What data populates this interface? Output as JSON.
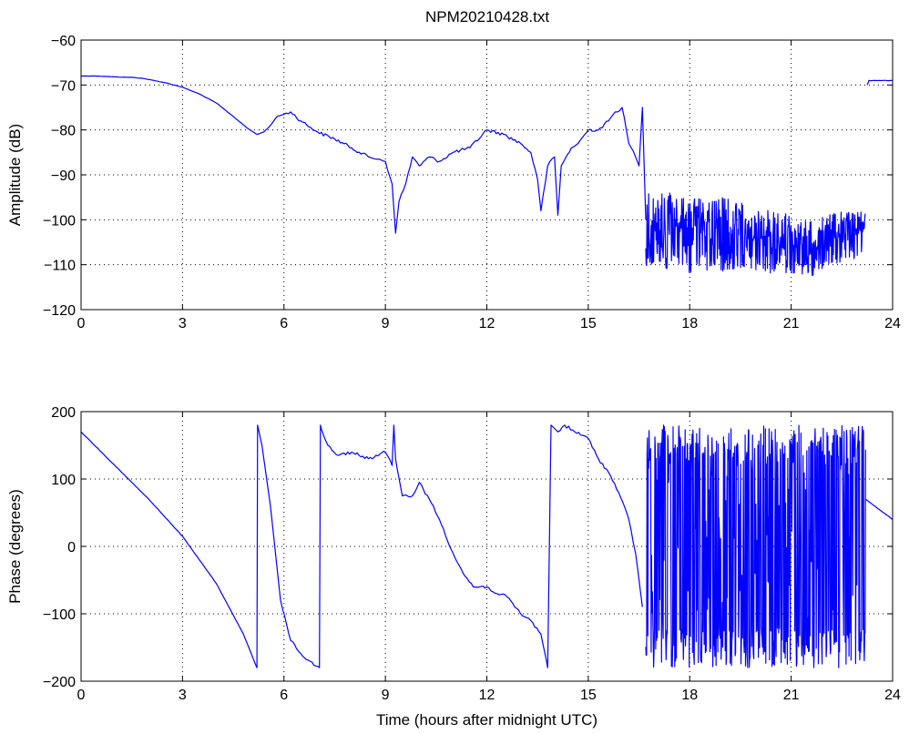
{
  "title": "NPM20210428.txt",
  "colors": {
    "line": "#0000ff",
    "axes": "#000000",
    "background": "#ffffff"
  },
  "chart_data": [
    {
      "type": "line",
      "title": "NPM20210428.txt",
      "xlabel": "",
      "ylabel": "Amplitude (dB)",
      "xlim": [
        0,
        24
      ],
      "ylim": [
        -120,
        -60
      ],
      "xticks": [
        0,
        3,
        6,
        9,
        12,
        15,
        18,
        21,
        24
      ],
      "yticks": [
        -120,
        -110,
        -100,
        -90,
        -80,
        -70,
        -60
      ],
      "grid": true,
      "series": [
        {
          "x": [
            0,
            0.5,
            1,
            1.5,
            1.8,
            2.5,
            3,
            3.5,
            4,
            4.5,
            4.9,
            5.2,
            5.4,
            5.6,
            5.8,
            6.0,
            6.2,
            6.5,
            6.8,
            7.0,
            7.5,
            8.0,
            8.5,
            8.8,
            9.0,
            9.2,
            9.3,
            9.4,
            9.6,
            9.8,
            10.0,
            10.3,
            10.6,
            11.0,
            11.5,
            12.0,
            12.5,
            13.0,
            13.3,
            13.5,
            13.6,
            13.8,
            14.0,
            14.1,
            14.2,
            14.5,
            14.7,
            15.0,
            15.3,
            15.6,
            15.8,
            16.0,
            16.2,
            16.4,
            16.5,
            16.6,
            16.7
          ],
          "values": [
            -68,
            -68,
            -68.2,
            -68.3,
            -68.5,
            -69.5,
            -70.5,
            -72,
            -74,
            -77,
            -79.5,
            -81,
            -80.5,
            -79,
            -77,
            -76.5,
            -76,
            -78,
            -79.5,
            -80.5,
            -82,
            -84,
            -86,
            -86.5,
            -87,
            -92,
            -103,
            -96,
            -92,
            -86,
            -88,
            -86,
            -87,
            -85,
            -84,
            -80,
            -81,
            -83,
            -85,
            -91,
            -98,
            -88,
            -86,
            -99,
            -88,
            -84,
            -83,
            -80,
            -80,
            -78,
            -76,
            -75,
            -83,
            -86,
            -88,
            -75,
            -100
          ]
        },
        {
          "name": "",
          "x": [
            16.7,
            17.0,
            17.5,
            18.0,
            18.5,
            19.0,
            19.5,
            20.0,
            20.5,
            21.0,
            21.5,
            21.8,
            22.0,
            22.5,
            23.0,
            23.2
          ],
          "values": [
            -104,
            -103,
            -102,
            -103,
            -103,
            -104,
            -104,
            -104,
            -105,
            -105,
            -106,
            -106,
            -103,
            -103,
            -102,
            -103
          ],
          "noise_band": {
            "upper": [
              -93,
              -94,
              -94,
              -95,
              -95,
              -95,
              -96,
              -97,
              -98,
              -99,
              -100,
              -100,
              -99,
              -98,
              -98,
              -98
            ],
            "lower": [
              -112,
              -111,
              -111,
              -112,
              -112,
              -112,
              -111,
              -112,
              -112,
              -112,
              -113,
              -113,
              -110,
              -110,
              -109,
              -110
            ]
          }
        },
        {
          "x": [
            23.25,
            23.3,
            23.5,
            24
          ],
          "values": [
            -70,
            -69,
            -69,
            -69
          ]
        }
      ]
    },
    {
      "type": "line",
      "title": "",
      "xlabel": "Time (hours after midnight UTC)",
      "ylabel": "Phase (degrees)",
      "xlim": [
        0,
        24
      ],
      "ylim": [
        -200,
        200
      ],
      "xticks": [
        0,
        3,
        6,
        9,
        12,
        15,
        18,
        21,
        24
      ],
      "yticks": [
        -200,
        -100,
        0,
        100,
        200
      ],
      "grid": true,
      "series": [
        {
          "x": [
            0,
            1,
            2,
            3,
            4,
            4.8,
            5.2,
            5.22,
            5.35,
            5.6,
            5.9,
            6.2,
            6.6,
            7.0,
            7.05,
            7.08,
            7.1,
            7.3,
            7.6,
            8.0,
            8.5,
            9.0,
            9.2,
            9.25,
            9.3,
            9.35,
            9.5,
            9.8,
            10.0,
            10.3,
            10.6,
            11.0,
            11.3,
            11.6,
            12.0,
            12.3,
            12.6,
            13.0,
            13.3,
            13.6,
            13.8,
            13.9,
            14.0,
            14.1,
            14.3,
            14.6,
            15.0,
            15.3,
            15.6,
            15.9,
            16.2,
            16.4,
            16.6
          ],
          "values": [
            170,
            120,
            70,
            15,
            -55,
            -130,
            -180,
            180,
            150,
            60,
            -80,
            -140,
            -165,
            -178,
            -180,
            180,
            175,
            150,
            135,
            140,
            130,
            140,
            120,
            180,
            130,
            115,
            75,
            75,
            95,
            70,
            40,
            -10,
            -40,
            -60,
            -60,
            -70,
            -75,
            -100,
            -110,
            -130,
            -180,
            180,
            175,
            170,
            180,
            170,
            160,
            130,
            110,
            80,
            40,
            -10,
            -90
          ]
        },
        {
          "name": "",
          "x": [
            16.7,
            17.5,
            18.5,
            19.5,
            20.5,
            21.5,
            22.5,
            23.2
          ],
          "values": [
            0,
            0,
            0,
            0,
            0,
            0,
            0,
            0
          ],
          "noise_band": {
            "upper": [
              180,
              180,
              180,
              180,
              180,
              180,
              180,
              180
            ],
            "lower": [
              -180,
              -180,
              -180,
              -180,
              -180,
              -180,
              -180,
              -180
            ]
          }
        },
        {
          "x": [
            23.2,
            24
          ],
          "values": [
            70,
            40
          ]
        }
      ]
    }
  ]
}
